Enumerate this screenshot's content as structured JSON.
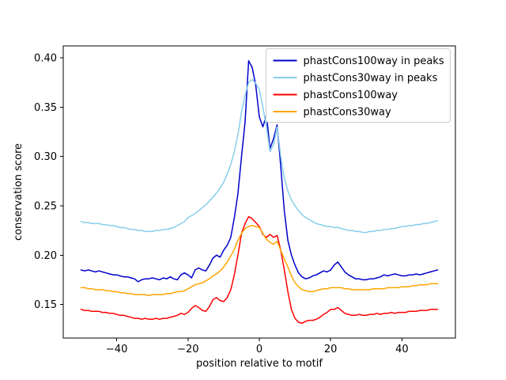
{
  "figure": {
    "background": "#ffffff"
  },
  "chart_data": {
    "type": "line",
    "title": "",
    "xlabel": "position relative to motif",
    "ylabel": "conservation score",
    "xlim": [
      -55,
      55
    ],
    "ylim": [
      0.116,
      0.412
    ],
    "xticks": [
      -40,
      -20,
      0,
      20,
      40
    ],
    "yticks": [
      0.15,
      0.2,
      0.25,
      0.3,
      0.35,
      0.4
    ],
    "grid": false,
    "legend_position": "upper right",
    "x": [
      -50,
      -49,
      -48,
      -47,
      -46,
      -45,
      -44,
      -43,
      -42,
      -41,
      -40,
      -39,
      -38,
      -37,
      -36,
      -35,
      -34,
      -33,
      -32,
      -31,
      -30,
      -29,
      -28,
      -27,
      -26,
      -25,
      -24,
      -23,
      -22,
      -21,
      -20,
      -19,
      -18,
      -17,
      -16,
      -15,
      -14,
      -13,
      -12,
      -11,
      -10,
      -9,
      -8,
      -7,
      -6,
      -5,
      -4,
      -3,
      -2,
      -1,
      0,
      1,
      2,
      3,
      4,
      5,
      6,
      7,
      8,
      9,
      10,
      11,
      12,
      13,
      14,
      15,
      16,
      17,
      18,
      19,
      20,
      21,
      22,
      23,
      24,
      25,
      26,
      27,
      28,
      29,
      30,
      31,
      32,
      33,
      34,
      35,
      36,
      37,
      38,
      39,
      40,
      41,
      42,
      43,
      44,
      45,
      46,
      47,
      48,
      49,
      50
    ],
    "series": [
      {
        "name": "phastCons100way in peaks",
        "color": "#0000cd",
        "values": [
          0.185,
          0.184,
          0.185,
          0.184,
          0.183,
          0.184,
          0.183,
          0.182,
          0.181,
          0.18,
          0.18,
          0.179,
          0.178,
          0.178,
          0.177,
          0.176,
          0.173,
          0.175,
          0.176,
          0.176,
          0.177,
          0.176,
          0.175,
          0.177,
          0.176,
          0.178,
          0.176,
          0.175,
          0.18,
          0.182,
          0.18,
          0.177,
          0.185,
          0.187,
          0.185,
          0.184,
          0.19,
          0.197,
          0.2,
          0.198,
          0.205,
          0.21,
          0.218,
          0.238,
          0.262,
          0.3,
          0.335,
          0.397,
          0.39,
          0.372,
          0.34,
          0.33,
          0.342,
          0.308,
          0.318,
          0.332,
          0.29,
          0.245,
          0.215,
          0.2,
          0.19,
          0.182,
          0.178,
          0.176,
          0.177,
          0.179,
          0.18,
          0.182,
          0.184,
          0.183,
          0.185,
          0.19,
          0.193,
          0.188,
          0.183,
          0.18,
          0.178,
          0.176,
          0.176,
          0.175,
          0.175,
          0.176,
          0.176,
          0.177,
          0.178,
          0.18,
          0.179,
          0.18,
          0.181,
          0.18,
          0.179,
          0.179,
          0.18,
          0.18,
          0.181,
          0.18,
          0.181,
          0.182,
          0.183,
          0.184,
          0.185
        ]
      },
      {
        "name": "phastCons30way in peaks",
        "color": "#87ceeb",
        "values": [
          0.234,
          0.233,
          0.233,
          0.232,
          0.232,
          0.232,
          0.231,
          0.231,
          0.23,
          0.23,
          0.229,
          0.228,
          0.228,
          0.227,
          0.226,
          0.226,
          0.225,
          0.225,
          0.224,
          0.224,
          0.224,
          0.225,
          0.225,
          0.226,
          0.226,
          0.227,
          0.228,
          0.23,
          0.232,
          0.234,
          0.238,
          0.24,
          0.242,
          0.245,
          0.248,
          0.251,
          0.255,
          0.259,
          0.263,
          0.268,
          0.274,
          0.282,
          0.292,
          0.305,
          0.322,
          0.345,
          0.362,
          0.375,
          0.378,
          0.374,
          0.368,
          0.35,
          0.33,
          0.305,
          0.312,
          0.33,
          0.3,
          0.278,
          0.265,
          0.256,
          0.25,
          0.245,
          0.241,
          0.238,
          0.236,
          0.234,
          0.232,
          0.231,
          0.23,
          0.229,
          0.229,
          0.228,
          0.228,
          0.227,
          0.226,
          0.225,
          0.225,
          0.224,
          0.224,
          0.223,
          0.223,
          0.224,
          0.224,
          0.225,
          0.225,
          0.226,
          0.226,
          0.227,
          0.227,
          0.228,
          0.229,
          0.229,
          0.23,
          0.23,
          0.231,
          0.231,
          0.232,
          0.232,
          0.233,
          0.234,
          0.235
        ]
      },
      {
        "name": "phastCons100way",
        "color": "#ff0000",
        "values": [
          0.145,
          0.144,
          0.144,
          0.143,
          0.143,
          0.143,
          0.142,
          0.142,
          0.141,
          0.141,
          0.14,
          0.139,
          0.139,
          0.138,
          0.137,
          0.136,
          0.136,
          0.135,
          0.136,
          0.135,
          0.135,
          0.136,
          0.135,
          0.136,
          0.136,
          0.137,
          0.138,
          0.139,
          0.141,
          0.14,
          0.142,
          0.146,
          0.149,
          0.147,
          0.144,
          0.143,
          0.148,
          0.155,
          0.157,
          0.154,
          0.153,
          0.157,
          0.165,
          0.18,
          0.2,
          0.222,
          0.232,
          0.239,
          0.237,
          0.233,
          0.229,
          0.221,
          0.218,
          0.221,
          0.218,
          0.22,
          0.205,
          0.185,
          0.163,
          0.145,
          0.136,
          0.132,
          0.131,
          0.133,
          0.134,
          0.134,
          0.135,
          0.137,
          0.14,
          0.142,
          0.145,
          0.145,
          0.147,
          0.144,
          0.141,
          0.14,
          0.139,
          0.139,
          0.14,
          0.139,
          0.139,
          0.14,
          0.14,
          0.141,
          0.14,
          0.141,
          0.141,
          0.142,
          0.141,
          0.142,
          0.142,
          0.142,
          0.143,
          0.143,
          0.143,
          0.144,
          0.144,
          0.144,
          0.145,
          0.145,
          0.145
        ]
      },
      {
        "name": "phastCons30way",
        "color": "#ffa500",
        "values": [
          0.167,
          0.167,
          0.166,
          0.166,
          0.165,
          0.165,
          0.165,
          0.164,
          0.164,
          0.163,
          0.163,
          0.162,
          0.162,
          0.161,
          0.161,
          0.16,
          0.16,
          0.16,
          0.16,
          0.159,
          0.16,
          0.16,
          0.16,
          0.16,
          0.161,
          0.161,
          0.162,
          0.163,
          0.163,
          0.164,
          0.166,
          0.168,
          0.17,
          0.171,
          0.172,
          0.174,
          0.176,
          0.179,
          0.181,
          0.184,
          0.188,
          0.193,
          0.199,
          0.206,
          0.215,
          0.222,
          0.227,
          0.229,
          0.23,
          0.229,
          0.228,
          0.222,
          0.216,
          0.213,
          0.211,
          0.214,
          0.205,
          0.196,
          0.188,
          0.179,
          0.172,
          0.168,
          0.165,
          0.164,
          0.163,
          0.163,
          0.164,
          0.165,
          0.166,
          0.166,
          0.167,
          0.167,
          0.167,
          0.167,
          0.166,
          0.166,
          0.165,
          0.165,
          0.165,
          0.165,
          0.165,
          0.165,
          0.166,
          0.166,
          0.166,
          0.166,
          0.167,
          0.167,
          0.167,
          0.167,
          0.168,
          0.168,
          0.168,
          0.169,
          0.169,
          0.17,
          0.17,
          0.17,
          0.171,
          0.171,
          0.171
        ]
      }
    ]
  }
}
